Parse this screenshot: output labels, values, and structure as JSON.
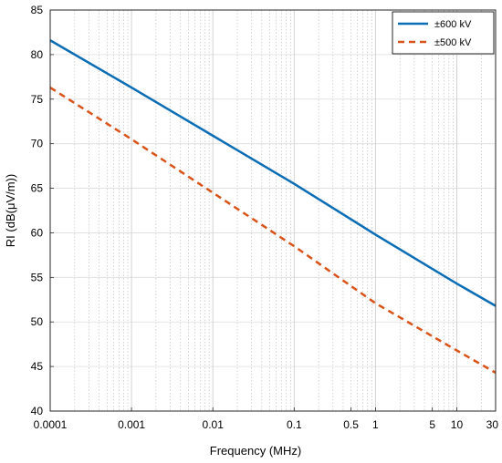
{
  "chart_data": {
    "type": "line",
    "title": "",
    "xlabel": "Frequency (MHz)",
    "ylabel": "RI (dB(μV/m))",
    "x_scale": "log",
    "xlim": [
      0.0001,
      30
    ],
    "ylim": [
      40,
      85
    ],
    "x_ticks": [
      {
        "value": 0.0001,
        "label": "0.0001"
      },
      {
        "value": 0.001,
        "label": "0.001"
      },
      {
        "value": 0.01,
        "label": "0.01"
      },
      {
        "value": 0.1,
        "label": "0.1"
      },
      {
        "value": 0.5,
        "label": "0.5"
      },
      {
        "value": 1,
        "label": "1"
      },
      {
        "value": 5,
        "label": "5"
      },
      {
        "value": 10,
        "label": "10"
      },
      {
        "value": 30,
        "label": "30"
      }
    ],
    "y_ticks": [
      {
        "value": 40,
        "label": "40"
      },
      {
        "value": 45,
        "label": "45"
      },
      {
        "value": 50,
        "label": "50"
      },
      {
        "value": 55,
        "label": "55"
      },
      {
        "value": 60,
        "label": "60"
      },
      {
        "value": 65,
        "label": "65"
      },
      {
        "value": 70,
        "label": "70"
      },
      {
        "value": 75,
        "label": "75"
      },
      {
        "value": 80,
        "label": "80"
      },
      {
        "value": 85,
        "label": "85"
      }
    ],
    "grid": true,
    "legend_position": "top-right",
    "series": [
      {
        "name": "±600 kV",
        "color": "#0b6db5",
        "style": "solid",
        "points": [
          {
            "x": 0.0001,
            "y": 81.6
          },
          {
            "x": 0.001,
            "y": 76.3
          },
          {
            "x": 0.01,
            "y": 70.9
          },
          {
            "x": 0.1,
            "y": 65.5
          },
          {
            "x": 1,
            "y": 59.8
          },
          {
            "x": 10,
            "y": 54.3
          },
          {
            "x": 30,
            "y": 51.8
          }
        ]
      },
      {
        "name": "±500 kV",
        "color": "#d95319",
        "style": "dashed",
        "points": [
          {
            "x": 0.0001,
            "y": 76.3
          },
          {
            "x": 0.001,
            "y": 70.5
          },
          {
            "x": 0.01,
            "y": 64.5
          },
          {
            "x": 0.1,
            "y": 58.5
          },
          {
            "x": 1,
            "y": 52.1
          },
          {
            "x": 10,
            "y": 46.8
          },
          {
            "x": 30,
            "y": 44.3
          }
        ]
      }
    ]
  }
}
